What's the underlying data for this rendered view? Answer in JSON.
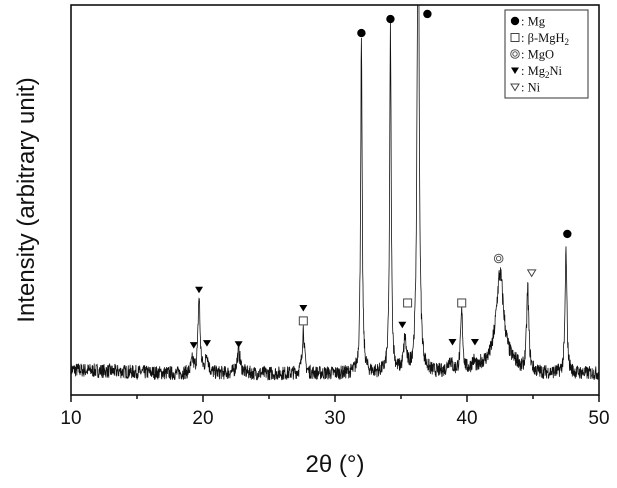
{
  "chart_data": {
    "type": "line",
    "title": "",
    "xlabel": "2θ (°)",
    "ylabel": "Intensity (arbitrary unit)",
    "xlim": [
      10,
      50
    ],
    "ylim": [
      0,
      100
    ],
    "y_ticks_shown": false,
    "x_ticks": [
      10,
      20,
      30,
      40,
      50
    ],
    "x_tick_labels": [
      "10",
      "20",
      "30",
      "40",
      "50"
    ],
    "x_minor_tick_step": 5,
    "grid": false,
    "legend_position": "top-right",
    "series": [
      {
        "color": "#111111",
        "baseline": 5.5,
        "noise_amplitude": 1.8,
        "peaks": [
          {
            "two_theta": 19.2,
            "height": 3,
            "width": 0.12
          },
          {
            "two_theta": 19.7,
            "height": 19.5,
            "width": 0.09
          },
          {
            "two_theta": 20.3,
            "height": 4.8,
            "width": 0.12
          },
          {
            "two_theta": 22.7,
            "height": 5.5,
            "width": 0.15
          },
          {
            "two_theta": 27.6,
            "height": 11.5,
            "width": 0.1
          },
          {
            "two_theta": 32.0,
            "height": 84,
            "width": 0.07
          },
          {
            "two_theta": 34.2,
            "height": 87.5,
            "width": 0.07
          },
          {
            "two_theta": 35.3,
            "height": 8,
            "width": 0.12
          },
          {
            "two_theta": 36.3,
            "height": 130,
            "width": 0.09
          },
          {
            "two_theta": 38.7,
            "height": 3,
            "width": 0.2
          },
          {
            "two_theta": 39.6,
            "height": 15,
            "width": 0.1
          },
          {
            "two_theta": 40.5,
            "height": 2.5,
            "width": 0.2
          },
          {
            "two_theta": 42.5,
            "height": 24,
            "width": 0.35
          },
          {
            "two_theta": 44.6,
            "height": 21,
            "width": 0.1
          },
          {
            "two_theta": 47.5,
            "height": 31,
            "width": 0.08
          }
        ]
      }
    ],
    "markers": [
      {
        "phase": "Mg",
        "symbol": "filled-circle",
        "two_theta": 32.0,
        "intensity": 92.8
      },
      {
        "phase": "Mg",
        "symbol": "filled-circle",
        "two_theta": 34.2,
        "intensity": 96.4
      },
      {
        "phase": "Mg",
        "symbol": "filled-circle",
        "two_theta": 37.0,
        "intensity": 97.7
      },
      {
        "phase": "Mg",
        "symbol": "filled-circle",
        "two_theta": 47.6,
        "intensity": 41.3
      },
      {
        "phase": "β-MgH2",
        "symbol": "open-square",
        "two_theta": 27.6,
        "intensity": 19
      },
      {
        "phase": "β-MgH2",
        "symbol": "open-square",
        "two_theta": 35.5,
        "intensity": 23.6
      },
      {
        "phase": "β-MgH2",
        "symbol": "open-square",
        "two_theta": 39.6,
        "intensity": 23.6
      },
      {
        "phase": "MgO",
        "symbol": "double-circle",
        "two_theta": 42.4,
        "intensity": 35
      },
      {
        "phase": "Ni",
        "symbol": "open-triangle",
        "two_theta": 44.9,
        "intensity": 31.3
      },
      {
        "phase": "Mg2Ni",
        "symbol": "filled-triangle",
        "two_theta": 19.7,
        "intensity": 27
      },
      {
        "phase": "Mg2Ni",
        "symbol": "filled-triangle",
        "two_theta": 19.3,
        "intensity": 12.8
      },
      {
        "phase": "Mg2Ni",
        "symbol": "filled-triangle",
        "two_theta": 20.3,
        "intensity": 13.3
      },
      {
        "phase": "Mg2Ni",
        "symbol": "filled-triangle",
        "two_theta": 22.7,
        "intensity": 13
      },
      {
        "phase": "Mg2Ni",
        "symbol": "filled-triangle",
        "two_theta": 27.6,
        "intensity": 22.3
      },
      {
        "phase": "Mg2Ni",
        "symbol": "filled-triangle",
        "two_theta": 35.1,
        "intensity": 18
      },
      {
        "phase": "Mg2Ni",
        "symbol": "filled-triangle",
        "two_theta": 38.9,
        "intensity": 13.6
      },
      {
        "phase": "Mg2Ni",
        "symbol": "filled-triangle",
        "two_theta": 40.6,
        "intensity": 13.6
      }
    ],
    "legend": [
      {
        "symbol": "filled-circle",
        "label": ": Mg"
      },
      {
        "symbol": "open-square",
        "label": ": β-MgH",
        "sub": "2"
      },
      {
        "symbol": "double-circle",
        "label": ": MgO"
      },
      {
        "symbol": "filled-triangle",
        "label": ": Mg",
        "sub": "2",
        "suffix": "Ni"
      },
      {
        "symbol": "open-triangle",
        "label": ": Ni"
      }
    ]
  }
}
